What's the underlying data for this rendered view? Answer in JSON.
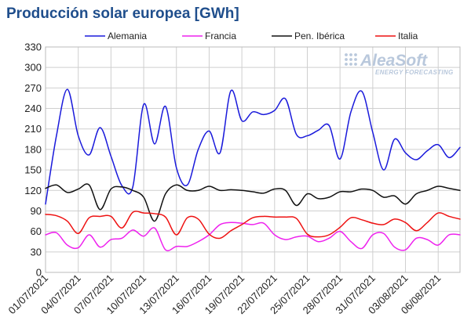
{
  "chart_data": {
    "type": "line",
    "title": "Producción solar europea [GWh]",
    "xlabel": "",
    "ylabel": "",
    "ylim": [
      0,
      330
    ],
    "yticks": [
      0,
      30,
      60,
      90,
      120,
      150,
      180,
      210,
      240,
      270,
      300,
      330
    ],
    "grid": true,
    "legend_position": "top",
    "x": [
      "01/07/2021",
      "02/07/2021",
      "03/07/2021",
      "04/07/2021",
      "05/07/2021",
      "06/07/2021",
      "07/07/2021",
      "08/07/2021",
      "09/07/2021",
      "10/07/2021",
      "11/07/2021",
      "12/07/2021",
      "13/07/2021",
      "14/07/2021",
      "15/07/2021",
      "16/07/2021",
      "17/07/2021",
      "18/07/2021",
      "19/07/2021",
      "20/07/2021",
      "21/07/2021",
      "22/07/2021",
      "23/07/2021",
      "24/07/2021",
      "25/07/2021",
      "26/07/2021",
      "27/07/2021",
      "28/07/2021",
      "29/07/2021",
      "30/07/2021",
      "31/07/2021",
      "01/08/2021",
      "02/08/2021",
      "03/08/2021",
      "04/08/2021",
      "05/08/2021",
      "06/08/2021",
      "07/08/2021",
      "08/08/2021"
    ],
    "xtick_labels": [
      "01/07/2021",
      "04/07/2021",
      "07/07/2021",
      "10/07/2021",
      "13/07/2021",
      "16/07/2021",
      "19/07/2021",
      "22/07/2021",
      "25/07/2021",
      "28/07/2021",
      "31/07/2021",
      "03/08/2021",
      "06/08/2021"
    ],
    "series": [
      {
        "name": "Alemania",
        "color": "#1a1adb",
        "values": [
          100,
          200,
          268,
          200,
          172,
          212,
          170,
          127,
          125,
          246,
          188,
          243,
          153,
          128,
          180,
          207,
          175,
          266,
          222,
          235,
          231,
          237,
          254,
          202,
          200,
          208,
          215,
          166,
          235,
          265,
          205,
          150,
          195,
          175,
          165,
          178,
          187,
          168,
          183
        ]
      },
      {
        "name": "Francia",
        "color": "#ee22ee",
        "values": [
          55,
          58,
          40,
          36,
          55,
          37,
          48,
          50,
          62,
          53,
          65,
          33,
          38,
          38,
          45,
          55,
          70,
          73,
          72,
          70,
          72,
          55,
          48,
          52,
          53,
          45,
          50,
          60,
          45,
          35,
          55,
          57,
          37,
          33,
          50,
          48,
          40,
          55,
          55
        ]
      },
      {
        "name": "Pen. Ibérica",
        "color": "#111111",
        "values": [
          123,
          128,
          117,
          122,
          128,
          92,
          122,
          125,
          120,
          110,
          75,
          115,
          128,
          120,
          120,
          126,
          120,
          121,
          120,
          118,
          116,
          122,
          120,
          98,
          115,
          108,
          110,
          118,
          118,
          122,
          120,
          110,
          112,
          100,
          115,
          120,
          126,
          123,
          120
        ]
      },
      {
        "name": "Italia",
        "color": "#ee1111",
        "values": [
          85,
          83,
          75,
          57,
          80,
          82,
          82,
          65,
          88,
          87,
          86,
          81,
          55,
          80,
          78,
          56,
          50,
          61,
          70,
          80,
          82,
          81,
          81,
          79,
          56,
          52,
          55,
          66,
          80,
          77,
          72,
          70,
          78,
          73,
          61,
          73,
          87,
          82,
          78
        ]
      }
    ]
  },
  "watermark": {
    "brand": "AleaSoft",
    "tagline": "ENERGY FORECASTING"
  }
}
